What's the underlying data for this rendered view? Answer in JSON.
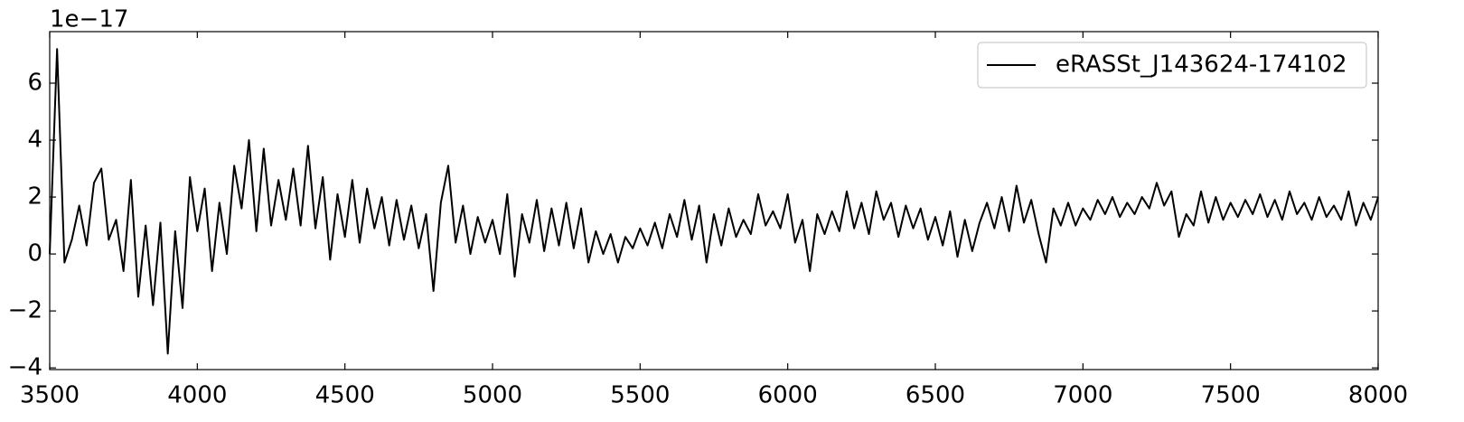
{
  "chart_data": {
    "type": "line",
    "offset_label": "1e−17",
    "x": [
      3500,
      3525,
      3550,
      3575,
      3600,
      3625,
      3650,
      3675,
      3700,
      3725,
      3750,
      3775,
      3800,
      3825,
      3850,
      3875,
      3900,
      3925,
      3950,
      3975,
      4000,
      4025,
      4050,
      4075,
      4100,
      4125,
      4150,
      4175,
      4200,
      4225,
      4250,
      4275,
      4300,
      4325,
      4350,
      4375,
      4400,
      4425,
      4450,
      4475,
      4500,
      4525,
      4550,
      4575,
      4600,
      4625,
      4650,
      4675,
      4700,
      4725,
      4750,
      4775,
      4800,
      4825,
      4850,
      4875,
      4900,
      4925,
      4950,
      4975,
      5000,
      5025,
      5050,
      5075,
      5100,
      5125,
      5150,
      5175,
      5200,
      5225,
      5250,
      5275,
      5300,
      5325,
      5350,
      5375,
      5400,
      5425,
      5450,
      5475,
      5500,
      5525,
      5550,
      5575,
      5600,
      5625,
      5650,
      5675,
      5700,
      5725,
      5750,
      5775,
      5800,
      5825,
      5850,
      5875,
      5900,
      5925,
      5950,
      5975,
      6000,
      6025,
      6050,
      6075,
      6100,
      6125,
      6150,
      6175,
      6200,
      6225,
      6250,
      6275,
      6300,
      6325,
      6350,
      6375,
      6400,
      6425,
      6450,
      6475,
      6500,
      6525,
      6550,
      6575,
      6600,
      6625,
      6650,
      6675,
      6700,
      6725,
      6750,
      6775,
      6800,
      6825,
      6850,
      6875,
      6900,
      6925,
      6950,
      6975,
      7000,
      7025,
      7050,
      7075,
      7100,
      7125,
      7150,
      7175,
      7200,
      7225,
      7250,
      7275,
      7300,
      7325,
      7350,
      7375,
      7400,
      7425,
      7450,
      7475,
      7500,
      7525,
      7550,
      7575,
      7600,
      7625,
      7650,
      7675,
      7700,
      7725,
      7750,
      7775,
      7800,
      7825,
      7850,
      7875,
      7900,
      7925,
      7950,
      7975,
      8000
    ],
    "series": [
      {
        "name": "eRASSt_J143624-174102",
        "color": "#000000",
        "values": [
          0,
          7.2,
          -0.3,
          0.5,
          1.7,
          0.3,
          2.5,
          3.0,
          0.5,
          1.2,
          -0.6,
          2.6,
          -1.5,
          1.0,
          -1.8,
          1.1,
          -3.5,
          0.8,
          -1.9,
          2.7,
          0.8,
          2.3,
          -0.6,
          1.8,
          0.0,
          3.1,
          1.6,
          4.0,
          0.8,
          3.7,
          1.0,
          2.6,
          1.2,
          3.0,
          1.0,
          3.8,
          0.9,
          2.7,
          -0.2,
          2.1,
          0.6,
          2.6,
          0.4,
          2.3,
          0.9,
          2.0,
          0.3,
          1.9,
          0.5,
          1.7,
          0.2,
          1.4,
          -1.3,
          1.8,
          3.1,
          0.4,
          1.7,
          0.0,
          1.3,
          0.4,
          1.2,
          0.0,
          2.1,
          -0.8,
          1.4,
          0.4,
          1.9,
          0.1,
          1.6,
          0.3,
          1.8,
          0.2,
          1.6,
          -0.3,
          0.8,
          0.0,
          0.7,
          -0.3,
          0.6,
          0.2,
          0.9,
          0.3,
          1.1,
          0.2,
          1.4,
          0.6,
          1.9,
          0.5,
          1.7,
          -0.3,
          1.4,
          0.3,
          1.6,
          0.6,
          1.2,
          0.7,
          2.1,
          1.0,
          1.5,
          0.9,
          2.1,
          0.4,
          1.2,
          -0.6,
          1.4,
          0.7,
          1.5,
          0.8,
          2.2,
          0.9,
          1.8,
          0.7,
          2.2,
          1.2,
          1.8,
          0.6,
          1.7,
          0.9,
          1.6,
          0.5,
          1.3,
          0.3,
          1.5,
          -0.1,
          1.2,
          0.1,
          1.1,
          1.8,
          0.9,
          2.0,
          0.8,
          2.4,
          1.1,
          1.9,
          0.7,
          -0.3,
          1.6,
          1.0,
          1.8,
          1.0,
          1.6,
          1.2,
          1.9,
          1.4,
          2.0,
          1.3,
          1.8,
          1.4,
          2.0,
          1.6,
          2.5,
          1.7,
          2.2,
          0.6,
          1.4,
          1.0,
          2.2,
          1.1,
          2.0,
          1.2,
          1.8,
          1.3,
          1.9,
          1.4,
          2.1,
          1.3,
          1.9,
          1.2,
          2.2,
          1.4,
          1.8,
          1.2,
          2.0,
          1.3,
          1.7,
          1.2,
          2.2,
          1.0,
          1.8,
          1.2,
          2.0
        ]
      }
    ],
    "xlim": [
      3500,
      8000
    ],
    "ylim": [
      -4.06,
      7.81
    ],
    "xticks": [
      3500,
      4000,
      4500,
      5000,
      5500,
      6000,
      6500,
      7000,
      7500,
      8000
    ],
    "yticks": [
      {
        "value": -4,
        "label": "−4"
      },
      {
        "value": -2,
        "label": "−2"
      },
      0,
      2,
      4,
      6
    ],
    "legend": "upper right",
    "grid": false
  }
}
